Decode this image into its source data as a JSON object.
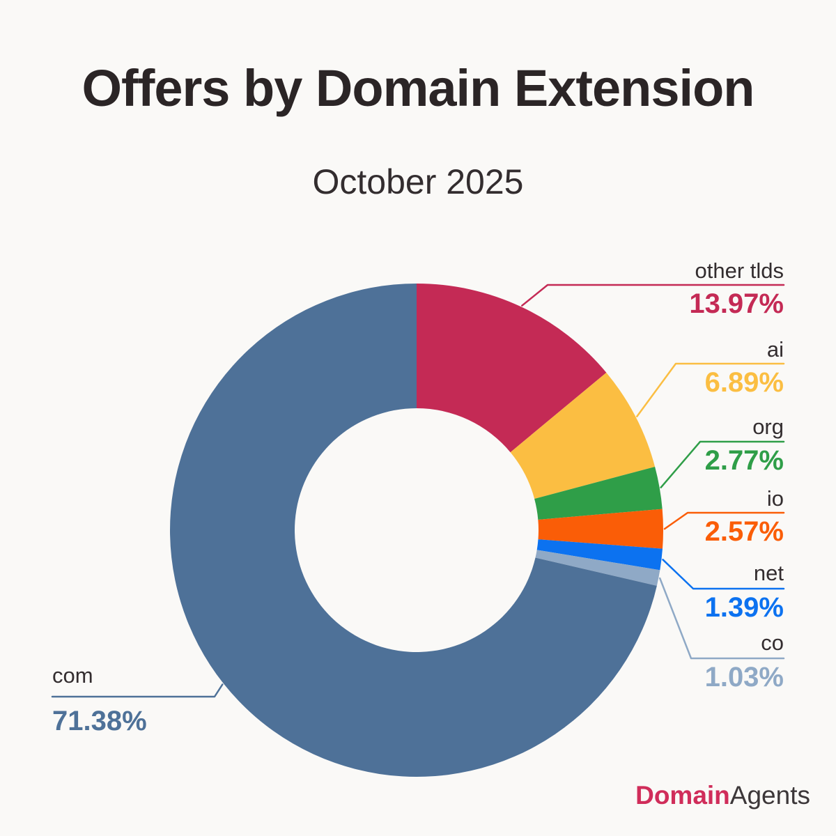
{
  "page": {
    "title": "Offers by Domain Extension",
    "subtitle": "October 2025",
    "background_color": "#FAF9F7",
    "title_color": "#2B2526",
    "label_text_color": "#332D2F"
  },
  "brand": {
    "part1": "Domain",
    "part2": "Agents",
    "part1_color": "#D02D5A",
    "part2_color": "#3C3739"
  },
  "chart_data": {
    "type": "pie",
    "variant": "donut",
    "title": "Offers by Domain Extension",
    "subtitle": "October 2025",
    "start_angle": "12 o'clock",
    "direction": "clockwise",
    "inner_radius_ratio": 0.49,
    "legend_position": "callout-labels",
    "slices": [
      {
        "label": "other tlds",
        "value": 13.97,
        "display": "13.97%",
        "color": "#C42A55"
      },
      {
        "label": "ai",
        "value": 6.89,
        "display": "6.89%",
        "color": "#FBBE42"
      },
      {
        "label": "org",
        "value": 2.77,
        "display": "2.77%",
        "color": "#2F9E48"
      },
      {
        "label": "io",
        "value": 2.57,
        "display": "2.57%",
        "color": "#FA5D07"
      },
      {
        "label": "net",
        "value": 1.39,
        "display": "1.39%",
        "color": "#0C72F0"
      },
      {
        "label": "co",
        "value": 1.03,
        "display": "1.03%",
        "color": "#8FA9C6"
      },
      {
        "label": "com",
        "value": 71.38,
        "display": "71.38%",
        "color": "#4E7198"
      }
    ]
  }
}
